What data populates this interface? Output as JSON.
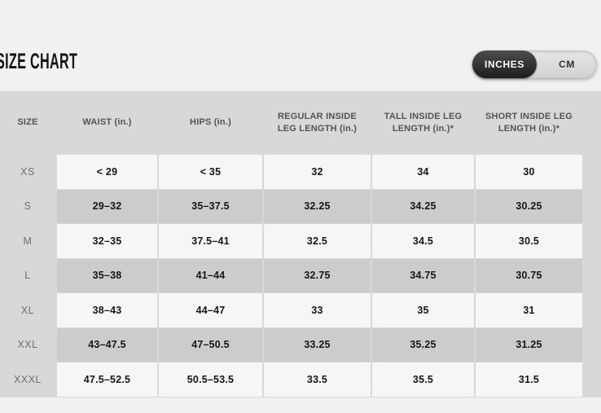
{
  "page": {
    "title": "SIZE CHART"
  },
  "unit_toggle": {
    "selected": "INCHES",
    "options": [
      "INCHES",
      "CM"
    ]
  },
  "table": {
    "columns": [
      "SIZE",
      "WAIST (in.)",
      "HIPS (in.)",
      "REGULAR INSIDE LEG LENGTH (in.)",
      "TALL INSIDE LEG LENGTH (in.)*",
      "SHORT INSIDE LEG LENGTH (in.)*"
    ],
    "rows": [
      {
        "size": "XS",
        "values": [
          "< 29",
          "< 35",
          "32",
          "34",
          "30"
        ]
      },
      {
        "size": "S",
        "values": [
          "29–32",
          "35–37.5",
          "32.25",
          "34.25",
          "30.25"
        ]
      },
      {
        "size": "M",
        "values": [
          "32–35",
          "37.5–41",
          "32.5",
          "34.5",
          "30.5"
        ]
      },
      {
        "size": "L",
        "values": [
          "35–38",
          "41–44",
          "32.75",
          "34.75",
          "30.75"
        ]
      },
      {
        "size": "XL",
        "values": [
          "38–43",
          "44–47",
          "33",
          "35",
          "31"
        ]
      },
      {
        "size": "XXL",
        "values": [
          "43–47.5",
          "47–50.5",
          "33.25",
          "35.25",
          "31.25"
        ]
      },
      {
        "size": "XXXL",
        "values": [
          "47.5–52.5",
          "50.5–53.5",
          "33.5",
          "35.5",
          "31.5"
        ]
      }
    ]
  },
  "colors": {
    "page_bg": "#f1f1f0",
    "table_bg": "#d9d8d6",
    "row_light": "#f7f6f5",
    "row_dark": "#cdcccb",
    "toggle_selected_bg": "#2b2b2b",
    "toggle_track_bg": "#d6d5d4",
    "title_color": "#151515"
  }
}
